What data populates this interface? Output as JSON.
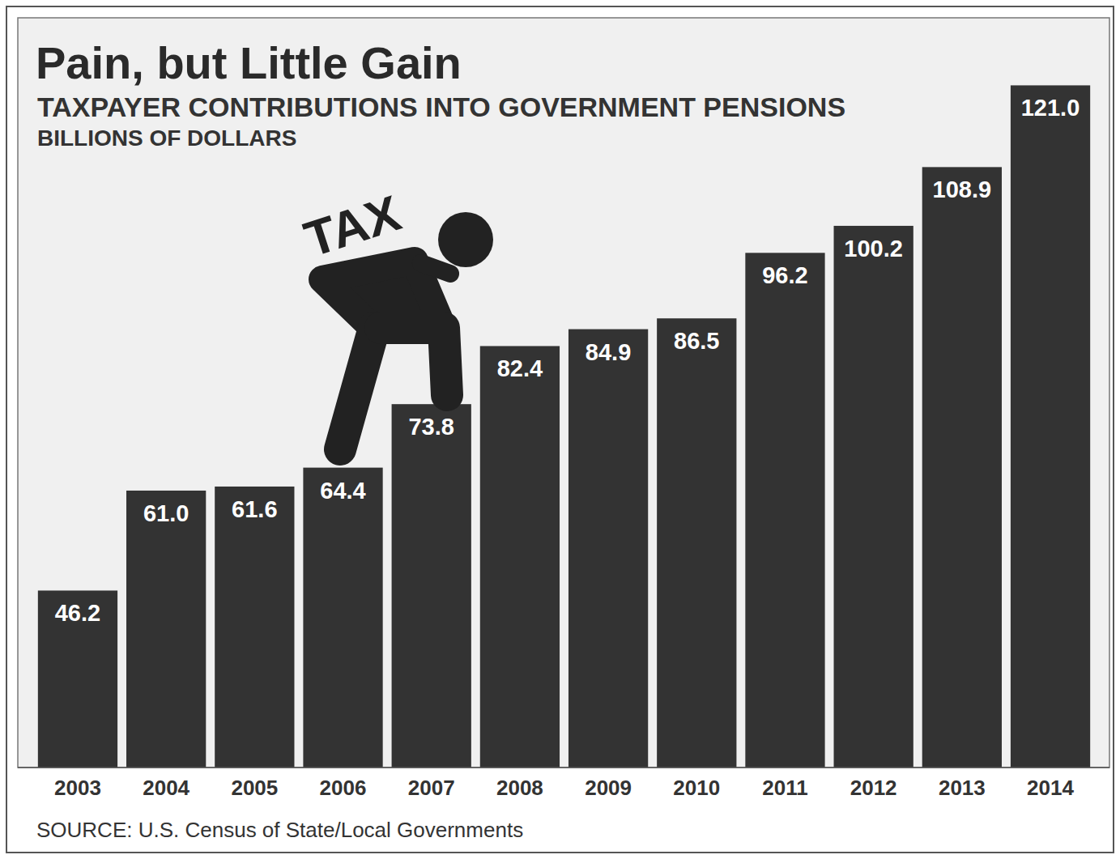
{
  "chart_data": {
    "type": "bar",
    "title": "Pain, but Little Gain",
    "subtitle": "TAXPAYER CONTRIBUTIONS INTO GOVERNMENT PENSIONS",
    "y_label": "BILLIONS OF DOLLARS",
    "source": "SOURCE: U.S. Census of State/Local Governments",
    "annotation": "TAX",
    "categories": [
      "2003",
      "2004",
      "2005",
      "2006",
      "2007",
      "2008",
      "2009",
      "2010",
      "2011",
      "2012",
      "2013",
      "2014"
    ],
    "values": [
      46.2,
      61.0,
      61.6,
      64.4,
      73.8,
      82.4,
      84.9,
      86.5,
      96.2,
      100.2,
      108.9,
      121.0
    ],
    "value_labels": [
      "46.2",
      "61.0",
      "61.6",
      "64.4",
      "73.8",
      "82.4",
      "84.9",
      "86.5",
      "96.2",
      "100.2",
      "108.9",
      "121.0"
    ],
    "color": "#333333",
    "ylim": [
      20,
      131
    ],
    "tick_labels": "x",
    "data_labels": true
  }
}
